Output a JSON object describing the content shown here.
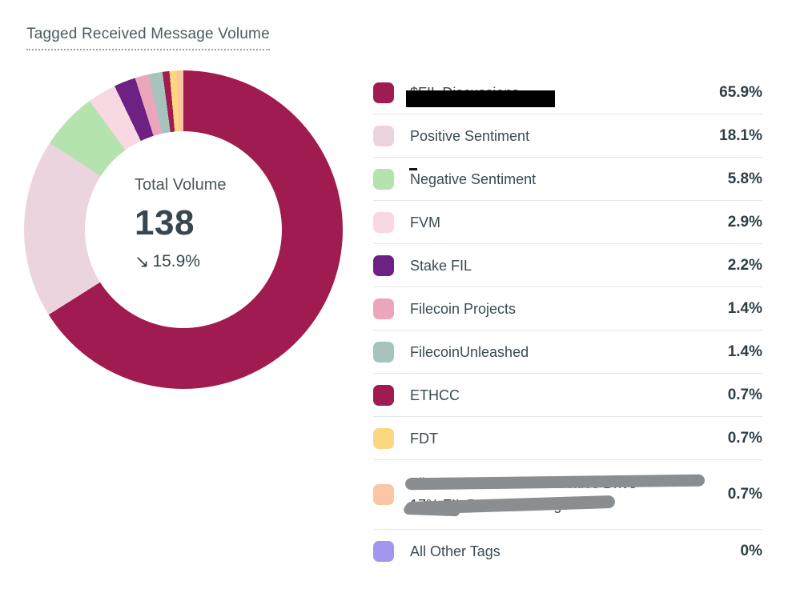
{
  "title": "Tagged Received Message Volume",
  "chart_data": {
    "type": "donut",
    "title": "Tagged Received Message Volume",
    "legend_position": "right",
    "center": {
      "label": "Total Volume",
      "value": "138",
      "arrow": "↘",
      "change": "15.9%",
      "change_direction": "down"
    },
    "series": [
      {
        "name": "$FIL Discussions",
        "pct": 65.9,
        "display": "65.9%",
        "color": "#A01B4F",
        "redacted": "black-bar"
      },
      {
        "name": "Positive Sentiment",
        "pct": 18.1,
        "display": "18.1%",
        "color": "#ECD4DE"
      },
      {
        "name": "Negative Sentiment",
        "pct": 5.8,
        "display": "5.8%",
        "color": "#B5E3AE",
        "mark": true
      },
      {
        "name": "FVM",
        "pct": 2.9,
        "display": "2.9%",
        "color": "#F8D9E2"
      },
      {
        "name": "Stake FIL",
        "pct": 2.2,
        "display": "2.2%",
        "color": "#6C2183"
      },
      {
        "name": "Filecoin Projects",
        "pct": 1.4,
        "display": "1.4%",
        "color": "#EBA6BC"
      },
      {
        "name": "FilecoinUnleashed",
        "pct": 1.4,
        "display": "1.4%",
        "color": "#A6C4BD"
      },
      {
        "name": "ETHCC",
        "pct": 0.7,
        "display": "0.7%",
        "color": "#A01B4F"
      },
      {
        "name": "FDT",
        "pct": 0.7,
        "display": "0.7%",
        "color": "#FCD77E"
      },
      {
        "name": "Filecoin Powered Universities Drive",
        "name_line2": "17% FIL Promo Package",
        "pct": 0.7,
        "display": "0.7%",
        "color": "#FAC7A3",
        "redacted": "scribble"
      },
      {
        "name": "All Other Tags",
        "pct": 0,
        "display": "0%",
        "color": "#A296EF"
      }
    ]
  },
  "colors": {
    "divider": "#e4e6e8",
    "label_text": "#3a4b52",
    "percent_text": "#2f3e45",
    "title_text": "#4a5b5e"
  }
}
